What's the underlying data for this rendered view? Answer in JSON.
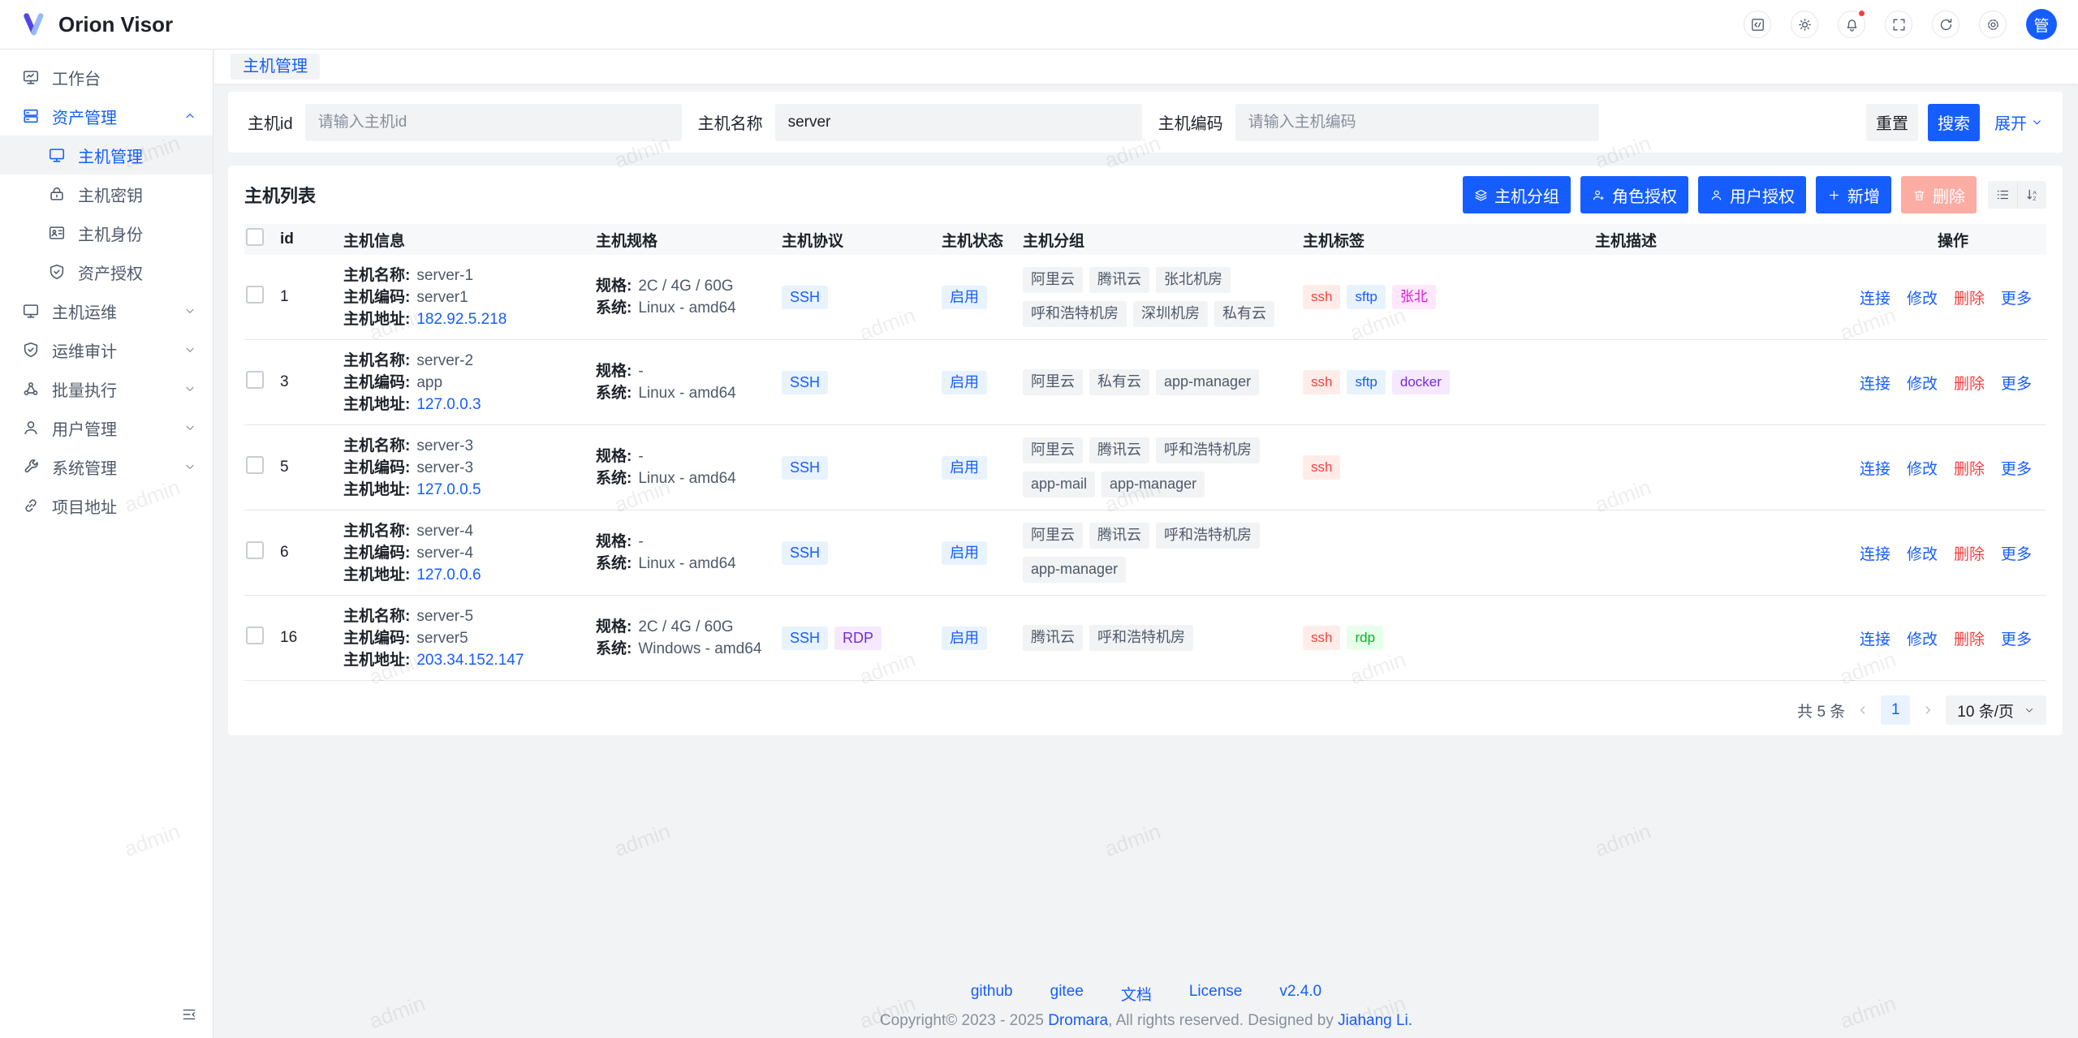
{
  "app": {
    "name": "Orion Visor",
    "avatar_text": "管"
  },
  "header": {
    "icons": [
      {
        "name": "code-icon"
      },
      {
        "name": "theme-icon"
      },
      {
        "name": "notification-icon",
        "badge": true
      },
      {
        "name": "fullscreen-icon"
      },
      {
        "name": "refresh-icon"
      },
      {
        "name": "settings-icon"
      }
    ]
  },
  "sidebar": {
    "items": [
      {
        "label": "工作台",
        "icon": "workbench-icon"
      },
      {
        "label": "资产管理",
        "icon": "assets-icon",
        "active": true,
        "expanded": true,
        "children": [
          {
            "label": "主机管理",
            "icon": "host-monitor-icon",
            "selected": true
          },
          {
            "label": "主机密钥",
            "icon": "host-key-icon"
          },
          {
            "label": "主机身份",
            "icon": "host-identity-icon"
          },
          {
            "label": "资产授权",
            "icon": "asset-grant-icon"
          }
        ]
      },
      {
        "label": "主机运维",
        "icon": "host-ops-icon",
        "collapsible": true
      },
      {
        "label": "运维审计",
        "icon": "audit-icon",
        "collapsible": true
      },
      {
        "label": "批量执行",
        "icon": "batch-exec-icon",
        "collapsible": true
      },
      {
        "label": "用户管理",
        "icon": "user-manage-icon",
        "collapsible": true
      },
      {
        "label": "系统管理",
        "icon": "system-manage-icon",
        "collapsible": true
      },
      {
        "label": "项目地址",
        "icon": "project-link-icon"
      }
    ]
  },
  "tabs": {
    "active": "主机管理"
  },
  "search": {
    "fields": [
      {
        "label": "主机id",
        "placeholder": "请输入主机id",
        "value": ""
      },
      {
        "label": "主机名称",
        "placeholder": "",
        "value": "server"
      },
      {
        "label": "主机编码",
        "placeholder": "请输入主机编码",
        "value": ""
      }
    ],
    "reset_label": "重置",
    "search_label": "搜索",
    "expand_label": "展开"
  },
  "list": {
    "title": "主机列表",
    "toolbar": [
      {
        "label": "主机分组",
        "icon": "group-icon",
        "style": "primary"
      },
      {
        "label": "角色授权",
        "icon": "role-grant-icon",
        "style": "primary"
      },
      {
        "label": "用户授权",
        "icon": "user-grant-icon",
        "style": "primary"
      },
      {
        "label": "新增",
        "icon": "plus-icon",
        "style": "primary"
      },
      {
        "label": "删除",
        "icon": "trash-icon",
        "style": "danger-disabled"
      }
    ],
    "columns": [
      "id",
      "主机信息",
      "主机规格",
      "主机协议",
      "主机状态",
      "主机分组",
      "主机标签",
      "主机描述",
      "操作"
    ],
    "info_labels": {
      "name": "主机名称:",
      "code": "主机编码:",
      "address": "主机地址:"
    },
    "spec_labels": {
      "spec": "规格:",
      "os": "系统:"
    },
    "rows": [
      {
        "id": "1",
        "name": "server-1",
        "code": "server1",
        "address": "182.92.5.218",
        "spec": "2C / 4G / 60G",
        "os": "Linux - amd64",
        "protocols": [
          {
            "label": "SSH",
            "color": "blue"
          }
        ],
        "status": "启用",
        "groups": [
          "阿里云",
          "腾讯云",
          "张北机房",
          "呼和浩特机房",
          "深圳机房",
          "私有云"
        ],
        "tags": [
          {
            "label": "ssh",
            "color": "red"
          },
          {
            "label": "sftp",
            "color": "blue"
          },
          {
            "label": "张北",
            "color": "magenta"
          }
        ],
        "description": ""
      },
      {
        "id": "3",
        "name": "server-2",
        "code": "app",
        "address": "127.0.0.3",
        "spec": "-",
        "os": "Linux - amd64",
        "protocols": [
          {
            "label": "SSH",
            "color": "blue"
          }
        ],
        "status": "启用",
        "groups": [
          "阿里云",
          "私有云",
          "app-manager"
        ],
        "tags": [
          {
            "label": "ssh",
            "color": "red"
          },
          {
            "label": "sftp",
            "color": "blue"
          },
          {
            "label": "docker",
            "color": "purple"
          }
        ],
        "description": ""
      },
      {
        "id": "5",
        "name": "server-3",
        "code": "server-3",
        "address": "127.0.0.5",
        "spec": "-",
        "os": "Linux - amd64",
        "protocols": [
          {
            "label": "SSH",
            "color": "blue"
          }
        ],
        "status": "启用",
        "groups": [
          "阿里云",
          "腾讯云",
          "呼和浩特机房",
          "app-mail",
          "app-manager"
        ],
        "tags": [
          {
            "label": "ssh",
            "color": "red"
          }
        ],
        "description": ""
      },
      {
        "id": "6",
        "name": "server-4",
        "code": "server-4",
        "address": "127.0.0.6",
        "spec": "-",
        "os": "Linux - amd64",
        "protocols": [
          {
            "label": "SSH",
            "color": "blue"
          }
        ],
        "status": "启用",
        "groups": [
          "阿里云",
          "腾讯云",
          "呼和浩特机房",
          "app-manager"
        ],
        "tags": [],
        "description": ""
      },
      {
        "id": "16",
        "name": "server-5",
        "code": "server5",
        "address": "203.34.152.147",
        "spec": "2C / 4G / 60G",
        "os": "Windows - amd64",
        "protocols": [
          {
            "label": "SSH",
            "color": "blue"
          },
          {
            "label": "RDP",
            "color": "purple"
          }
        ],
        "status": "启用",
        "groups": [
          "腾讯云",
          "呼和浩特机房"
        ],
        "tags": [
          {
            "label": "ssh",
            "color": "red"
          },
          {
            "label": "rdp",
            "color": "green"
          }
        ],
        "description": ""
      }
    ],
    "row_actions": [
      {
        "label": "连接",
        "color": "blue"
      },
      {
        "label": "修改",
        "color": "blue"
      },
      {
        "label": "删除",
        "color": "red"
      },
      {
        "label": "更多",
        "color": "blue"
      }
    ],
    "pagination": {
      "total": "共 5 条",
      "page": "1",
      "page_size": "10 条/页"
    }
  },
  "footer": {
    "links": [
      "github",
      "gitee",
      "文档",
      "License",
      "v2.4.0"
    ],
    "copyright_prefix": "Copyright© 2023 - 2025 ",
    "copyright_org": "Dromara",
    "copyright_middle": ", All rights reserved. Designed by ",
    "copyright_author": "Jiahang Li."
  },
  "watermark": {
    "text": "admin"
  },
  "colors": {
    "primary": "#165dff",
    "danger": "#f53f3f",
    "tag_red_bg": "#ffece8",
    "tag_red_text": "#f53f3f",
    "tag_blue_bg": "#e8f3ff",
    "tag_blue_text": "#165dff",
    "tag_purple_bg": "#f5e8ff",
    "tag_purple_text": "#722ed1",
    "tag_magenta_bg": "#ffe8fb",
    "tag_magenta_text": "#d91ad9",
    "tag_green_bg": "#e8ffea",
    "tag_green_text": "#00b42a"
  }
}
